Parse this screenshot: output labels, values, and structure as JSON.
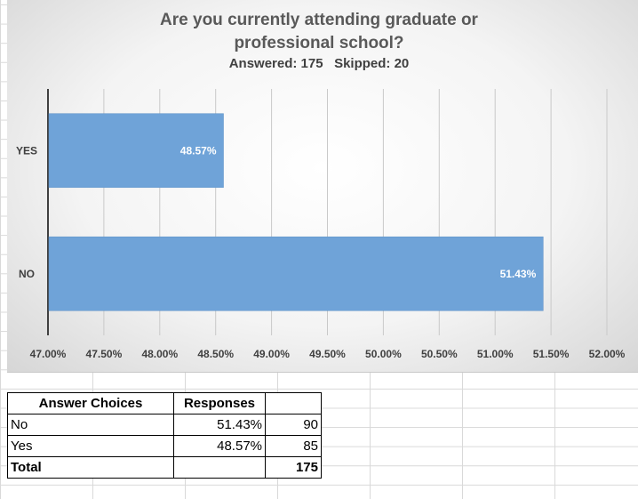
{
  "chart_data": {
    "type": "bar",
    "orientation": "horizontal",
    "title": "Are you currently attending graduate or professional school?",
    "title_lines": [
      "Are you currently attending graduate or",
      "professional school?"
    ],
    "subtitle": "Answered: 175   Skipped: 20",
    "categories": [
      "YES",
      "NO"
    ],
    "values": [
      48.57,
      51.43
    ],
    "data_labels": [
      "48.57%",
      "51.43%"
    ],
    "xlim": [
      47.0,
      52.0
    ],
    "x_ticks": [
      "47.00%",
      "47.50%",
      "48.00%",
      "48.50%",
      "49.00%",
      "49.50%",
      "50.00%",
      "50.50%",
      "51.00%",
      "51.50%",
      "52.00%"
    ],
    "bar_color": "#6fa3d8",
    "grid": true,
    "legend": "none"
  },
  "table": {
    "headers": [
      "Answer Choices",
      "Responses",
      ""
    ],
    "rows": [
      [
        "No",
        "51.43%",
        "90"
      ],
      [
        "Yes",
        "48.57%",
        "85"
      ]
    ],
    "total": [
      "Total",
      "",
      "175"
    ]
  }
}
